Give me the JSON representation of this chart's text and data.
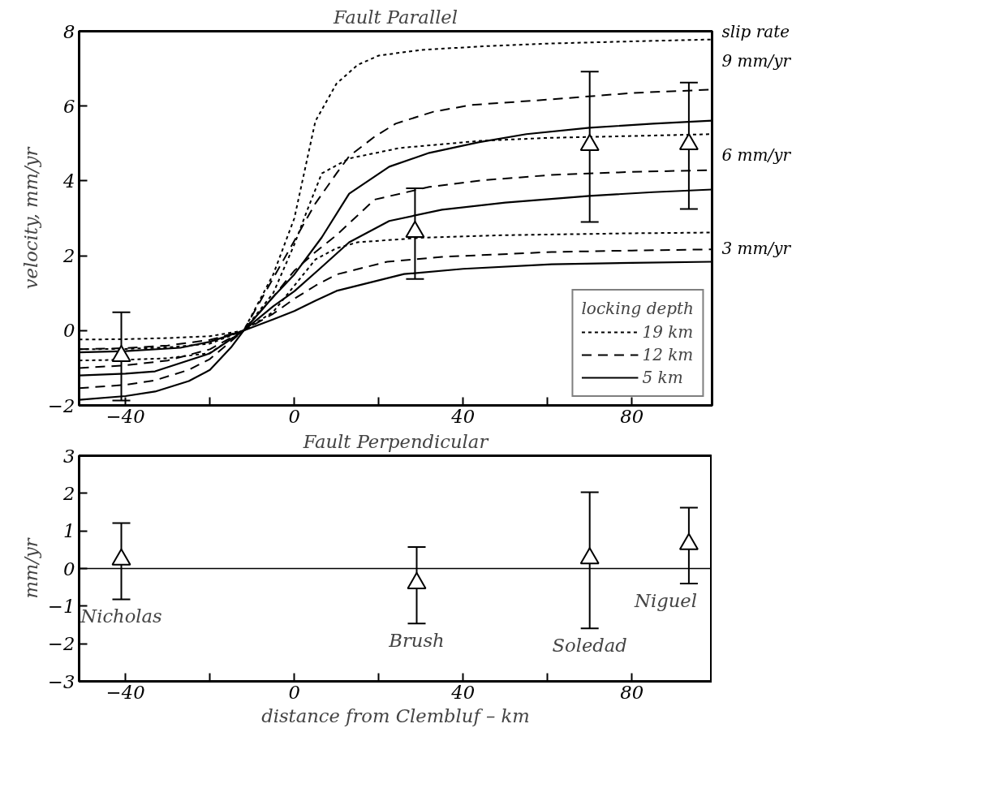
{
  "chart_data": [
    {
      "type": "line",
      "title": "Fault Parallel",
      "ylabel": "velocity, mm/yr",
      "legend_title": "locking depth",
      "legend": "bottom right",
      "annotations": [
        "slip rate",
        "9 mm/yr",
        "6 mm/yr",
        "3 mm/yr"
      ],
      "xlim": [
        -51,
        99
      ],
      "xticks": [
        -40,
        {
          "value": -20,
          "label": null
        },
        0,
        {
          "value": 20,
          "label": null
        },
        40,
        {
          "value": 60,
          "label": null
        },
        80
      ],
      "ylim": [
        -2,
        8
      ],
      "yticks": [
        -2,
        0,
        2,
        4,
        6,
        8
      ],
      "series": [
        {
          "name": "19 km",
          "color": "#000000",
          "line_style": "dotted",
          "x": [
            -51,
            -40,
            -30,
            -20,
            -12,
            -5,
            0,
            5,
            10,
            15,
            20,
            30,
            45,
            60,
            80,
            99
          ],
          "values": [
            -0.8,
            -0.78,
            -0.74,
            -0.6,
            0,
            1.5,
            3.0,
            5.6,
            6.6,
            7.1,
            7.35,
            7.5,
            7.6,
            7.67,
            7.73,
            7.78
          ]
        },
        {
          "color": "#000000",
          "line_style": "dotted",
          "x": [
            -51,
            -40,
            -30,
            -20,
            -12,
            -5,
            0,
            3,
            6.5,
            13,
            25,
            44,
            60,
            80,
            99
          ],
          "values": [
            -0.5,
            -0.49,
            -0.45,
            -0.35,
            0,
            1.0,
            2.3,
            3.2,
            4.2,
            4.6,
            4.88,
            5.07,
            5.15,
            5.2,
            5.25
          ]
        },
        {
          "color": "#000000",
          "line_style": "dotted",
          "x": [
            -51,
            -40,
            -30,
            -20,
            -12,
            -5,
            0,
            5,
            10,
            15,
            30,
            50,
            80,
            99
          ],
          "values": [
            -0.24,
            -0.23,
            -0.2,
            -0.15,
            0,
            0.5,
            1.2,
            1.9,
            2.2,
            2.36,
            2.48,
            2.55,
            2.6,
            2.62
          ]
        },
        {
          "name": "12 km",
          "color": "#000000",
          "line_style": "dashed",
          "x": [
            -51,
            -40,
            -33,
            -25,
            -20,
            -12,
            -5,
            0,
            5,
            10,
            13,
            19,
            24,
            33,
            42,
            61,
            80,
            99
          ],
          "values": [
            -1.54,
            -1.45,
            -1.33,
            -1.05,
            -0.76,
            0,
            1.4,
            2.4,
            3.4,
            4.2,
            4.66,
            5.18,
            5.53,
            5.85,
            6.03,
            6.18,
            6.35,
            6.44
          ]
        },
        {
          "color": "#000000",
          "line_style": "dashed",
          "x": [
            -51,
            -40,
            -30,
            -20,
            -12,
            -5,
            0,
            5,
            10,
            19,
            32,
            45,
            61,
            80,
            99
          ],
          "values": [
            -1.0,
            -0.93,
            -0.8,
            -0.5,
            0,
            0.9,
            1.6,
            2.1,
            2.55,
            3.5,
            3.84,
            4.02,
            4.16,
            4.24,
            4.29
          ]
        },
        {
          "color": "#000000",
          "line_style": "dashed",
          "x": [
            -51,
            -40,
            -30,
            -20,
            -12,
            -5,
            0,
            5,
            10,
            22,
            35,
            61,
            80,
            99
          ],
          "values": [
            -0.5,
            -0.47,
            -0.4,
            -0.25,
            0,
            0.45,
            0.85,
            1.2,
            1.5,
            1.84,
            1.97,
            2.1,
            2.14,
            2.17
          ]
        },
        {
          "name": "5 km",
          "color": "#000000",
          "line_style": "solid",
          "x": [
            -51,
            -40,
            -33,
            -25,
            -20,
            -15,
            -12,
            -5,
            0,
            6.5,
            13,
            22.5,
            32,
            43.6,
            55,
            70,
            85,
            99
          ],
          "values": [
            -1.85,
            -1.75,
            -1.63,
            -1.35,
            -1.05,
            -0.45,
            0,
            0.9,
            1.5,
            2.49,
            3.66,
            4.38,
            4.75,
            5.03,
            5.25,
            5.42,
            5.53,
            5.61
          ]
        },
        {
          "color": "#000000",
          "line_style": "solid",
          "x": [
            -51,
            -40,
            -33,
            -20,
            -12,
            -5,
            0,
            6,
            13,
            22.5,
            35,
            50,
            70,
            85,
            99
          ],
          "values": [
            -1.2,
            -1.15,
            -1.09,
            -0.61,
            0,
            0.65,
            1.05,
            1.65,
            2.36,
            2.93,
            3.23,
            3.42,
            3.6,
            3.7,
            3.77
          ]
        },
        {
          "color": "#000000",
          "line_style": "solid",
          "x": [
            -51,
            -40,
            -27,
            -20,
            -12,
            -5,
            0,
            5,
            10,
            26,
            40,
            61,
            80,
            99
          ],
          "values": [
            -0.58,
            -0.55,
            -0.46,
            -0.3,
            0,
            0.3,
            0.52,
            0.8,
            1.06,
            1.51,
            1.65,
            1.77,
            1.81,
            1.84
          ]
        },
        {
          "type": "scatter",
          "color": "#000000",
          "marker": "triangle",
          "x": [
            -41,
            28.6,
            70,
            93.5
          ],
          "values": [
            -0.68,
            2.64,
            4.96,
            4.98
          ],
          "errors": [
            [
              -1.87,
              0.49
            ],
            [
              1.38,
              3.8
            ],
            [
              2.9,
              6.92
            ],
            [
              3.25,
              6.63
            ]
          ]
        }
      ]
    },
    {
      "type": "scatter",
      "title": "Fault Perpendicular",
      "ylabel": "mm/yr",
      "xlabel": "distance from Clembluf – km",
      "color": "#000000",
      "marker": "triangle",
      "xlim": [
        -51,
        99
      ],
      "xticks": [
        -40,
        {
          "value": -20,
          "label": null
        },
        0,
        {
          "value": 20,
          "label": null
        },
        40,
        {
          "value": 60,
          "label": null
        },
        80
      ],
      "ylim": [
        -3,
        3
      ],
      "yticks": [
        -3,
        -2,
        -1,
        0,
        1,
        2,
        3
      ],
      "x": [
        -41,
        29,
        70,
        93.5
      ],
      "values": [
        0.24,
        -0.39,
        0.27,
        0.65
      ],
      "errors": [
        [
          -0.82,
          1.21
        ],
        [
          -1.46,
          0.57
        ],
        [
          -1.59,
          2.03
        ],
        [
          -0.4,
          1.62
        ]
      ],
      "ref_lines": [
        {
          "axis": "y",
          "value": 0,
          "color": "#000000",
          "line_style": "solid"
        }
      ],
      "annotations": [
        "Nicholas",
        "Brush",
        "Soledad",
        "Niguel"
      ]
    }
  ]
}
